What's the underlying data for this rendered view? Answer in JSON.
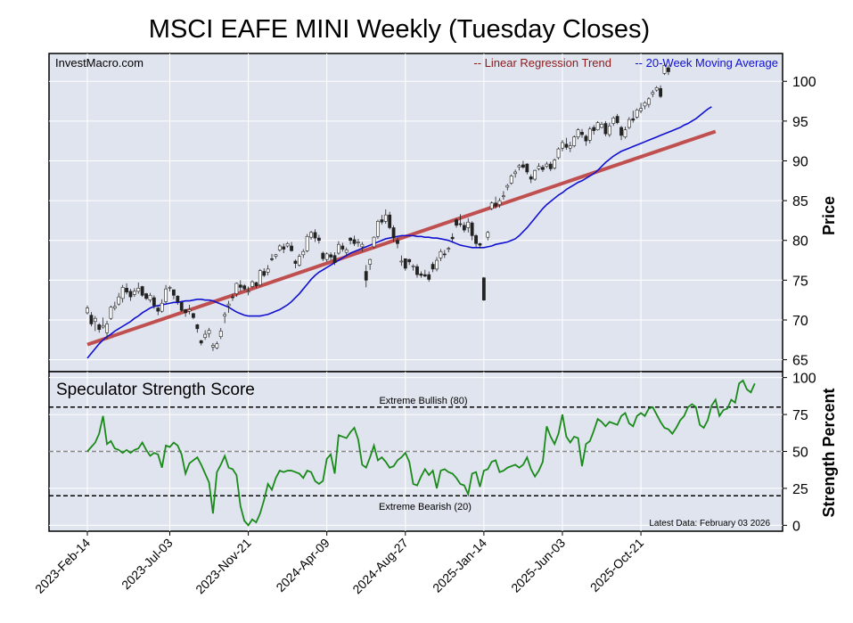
{
  "chart_data": [
    {
      "type": "candlestick",
      "title": "MSCI EAFE MINI Weekly (Tuesday Closes)",
      "watermark": "InvestMacro.com",
      "ylabel": "Price",
      "ylim": [
        63.5,
        103.5
      ],
      "yticks": [
        65,
        70,
        75,
        80,
        85,
        90,
        95,
        100
      ],
      "xlim": [
        0,
        168
      ],
      "grid": true,
      "legend": [
        {
          "label": "-- Linear Regression Trend",
          "color": "#8b1a1a"
        },
        {
          "label": "-- 20-Week Moving Average",
          "color": "#1010d0"
        }
      ],
      "legend_position": "top-right",
      "trend_line": {
        "start": [
          0,
          66.9
        ],
        "end": [
          160,
          93.7
        ],
        "color": "#c05050"
      },
      "candles": [
        [
          70.9,
          71.8,
          70.7,
          71.5
        ],
        [
          70.6,
          71.0,
          69.2,
          69.5
        ],
        [
          69.8,
          70.5,
          68.6,
          70.2
        ],
        [
          69.4,
          69.6,
          68.4,
          68.8
        ],
        [
          69.1,
          70.3,
          68.9,
          69.3
        ],
        [
          68.4,
          69.9,
          67.6,
          69.5
        ],
        [
          70.2,
          71.8,
          70.0,
          71.6
        ],
        [
          71.5,
          72.3,
          71.2,
          71.7
        ],
        [
          72.0,
          73.4,
          71.8,
          72.9
        ],
        [
          72.7,
          74.4,
          72.2,
          74.1
        ],
        [
          74.0,
          74.6,
          73.2,
          73.5
        ],
        [
          73.6,
          73.9,
          72.4,
          72.9
        ],
        [
          73.2,
          74.0,
          72.9,
          73.6
        ],
        [
          73.6,
          74.7,
          73.3,
          74.0
        ],
        [
          74.2,
          74.3,
          72.9,
          73.1
        ],
        [
          73.3,
          73.4,
          72.5,
          72.7
        ],
        [
          72.5,
          73.4,
          72.2,
          73.1
        ],
        [
          72.8,
          73.1,
          71.4,
          71.8
        ],
        [
          71.5,
          71.7,
          70.6,
          71.1
        ],
        [
          71.1,
          72.6,
          70.9,
          72.1
        ],
        [
          72.3,
          74.4,
          72.1,
          73.9
        ],
        [
          74.1,
          74.3,
          73.6,
          74.1
        ],
        [
          73.8,
          73.8,
          72.6,
          73.1
        ],
        [
          73.0,
          73.1,
          71.9,
          72.3
        ],
        [
          72.2,
          72.4,
          71.0,
          71.2
        ],
        [
          71.3,
          71.4,
          70.4,
          70.9
        ],
        [
          71.1,
          71.9,
          70.7,
          71.3
        ],
        [
          70.8,
          70.9,
          70.1,
          70.3
        ],
        [
          69.4,
          69.5,
          68.4,
          68.9
        ],
        [
          67.4,
          67.5,
          66.8,
          67.1
        ],
        [
          67.8,
          68.7,
          67.5,
          68.2
        ],
        [
          68.3,
          69.0,
          67.8,
          68.7
        ],
        [
          66.6,
          67.1,
          66.1,
          66.8
        ],
        [
          66.5,
          67.3,
          66.3,
          67.0
        ],
        [
          67.9,
          69.0,
          67.6,
          68.6
        ],
        [
          70.5,
          71.0,
          69.6,
          70.7
        ],
        [
          71.8,
          72.4,
          70.9,
          72.0
        ],
        [
          72.9,
          73.3,
          72.4,
          72.8
        ],
        [
          73.3,
          74.7,
          72.9,
          74.6
        ],
        [
          74.4,
          75.0,
          73.6,
          74.1
        ],
        [
          74.3,
          74.5,
          73.7,
          73.9
        ],
        [
          73.5,
          74.2,
          73.1,
          73.6
        ],
        [
          74.2,
          75.0,
          74.0,
          74.8
        ],
        [
          74.7,
          74.8,
          74.0,
          74.3
        ],
        [
          74.4,
          76.4,
          74.2,
          76.2
        ],
        [
          76.1,
          76.5,
          75.4,
          75.6
        ],
        [
          76.0,
          76.9,
          75.6,
          76.4
        ],
        [
          77.7,
          78.3,
          77.4,
          77.6
        ],
        [
          78.0,
          78.3,
          77.7,
          78.2
        ],
        [
          78.8,
          79.5,
          78.6,
          79.3
        ],
        [
          79.2,
          79.6,
          78.4,
          78.9
        ],
        [
          79.3,
          79.8,
          79.1,
          79.6
        ],
        [
          79.3,
          79.8,
          78.6,
          78.7
        ],
        [
          77.4,
          77.6,
          76.5,
          77.1
        ],
        [
          76.9,
          78.3,
          76.7,
          78.0
        ],
        [
          78.2,
          78.9,
          77.8,
          78.6
        ],
        [
          78.7,
          80.8,
          78.5,
          80.5
        ],
        [
          80.4,
          81.2,
          80.1,
          81.0
        ],
        [
          81.0,
          81.4,
          79.8,
          80.3
        ],
        [
          80.3,
          80.7,
          79.6,
          80.0
        ],
        [
          78.4,
          78.6,
          77.4,
          77.7
        ],
        [
          77.6,
          78.5,
          77.3,
          78.3
        ],
        [
          78.2,
          78.5,
          77.5,
          77.9
        ],
        [
          78.1,
          78.5,
          76.9,
          77.2
        ],
        [
          78.4,
          79.9,
          78.2,
          79.5
        ],
        [
          79.3,
          79.7,
          78.6,
          78.9
        ],
        [
          78.5,
          79.1,
          78.1,
          78.8
        ],
        [
          80.3,
          80.4,
          79.5,
          80.0
        ],
        [
          80.1,
          80.6,
          79.3,
          79.6
        ],
        [
          79.7,
          80.2,
          79.2,
          79.8
        ],
        [
          79.2,
          79.8,
          78.6,
          79.5
        ],
        [
          76.1,
          76.9,
          74.1,
          75.0
        ],
        [
          77.0,
          77.7,
          76.3,
          77.6
        ],
        [
          79.2,
          80.5,
          79.0,
          80.4
        ],
        [
          80.5,
          82.6,
          80.2,
          82.4
        ],
        [
          82.6,
          83.2,
          82.0,
          82.3
        ],
        [
          82.4,
          83.9,
          82.1,
          83.2
        ],
        [
          83.2,
          83.6,
          81.4,
          81.6
        ],
        [
          81.6,
          81.9,
          79.8,
          80.3
        ],
        [
          80.0,
          80.4,
          79.0,
          79.6
        ],
        [
          77.4,
          78.1,
          76.8,
          77.4
        ],
        [
          77.7,
          77.6,
          76.2,
          76.5
        ],
        [
          77.6,
          77.7,
          76.9,
          77.3
        ],
        [
          76.7,
          77.0,
          76.2,
          76.8
        ],
        [
          76.7,
          77.0,
          75.3,
          75.7
        ],
        [
          75.8,
          76.1,
          75.3,
          75.6
        ],
        [
          75.7,
          76.3,
          75.4,
          75.5
        ],
        [
          75.7,
          76.1,
          74.8,
          75.1
        ],
        [
          77.0,
          77.3,
          76.0,
          76.4
        ],
        [
          76.4,
          77.9,
          76.1,
          77.5
        ],
        [
          77.8,
          78.9,
          77.4,
          78.6
        ],
        [
          78.3,
          78.8,
          77.8,
          78.2
        ],
        [
          78.9,
          79.2,
          78.5,
          79.0
        ],
        [
          80.4,
          80.9,
          79.7,
          80.2
        ],
        [
          82.6,
          82.8,
          81.6,
          81.9
        ],
        [
          82.1,
          83.3,
          81.7,
          82.0
        ],
        [
          81.9,
          82.3,
          81.0,
          81.3
        ],
        [
          81.6,
          82.8,
          81.0,
          82.3
        ],
        [
          82.2,
          82.4,
          80.0,
          80.6
        ],
        [
          80.6,
          80.8,
          79.2,
          79.6
        ],
        [
          79.6,
          79.7,
          79.0,
          79.4
        ],
        [
          75.3,
          75.4,
          72.4,
          72.5
        ],
        [
          80.4,
          81.2,
          80.0,
          81.0
        ],
        [
          84.0,
          84.9,
          83.8,
          84.7
        ],
        [
          84.7,
          85.5,
          84.0,
          84.3
        ],
        [
          84.5,
          85.3,
          84.1,
          85.0
        ],
        [
          85.5,
          86.2,
          85.1,
          85.6
        ],
        [
          86.7,
          87.1,
          86.3,
          86.9
        ],
        [
          87.2,
          88.3,
          87.0,
          88.1
        ],
        [
          88.4,
          88.9,
          87.9,
          88.6
        ],
        [
          89.2,
          89.6,
          88.8,
          89.4
        ],
        [
          89.5,
          90.0,
          89.0,
          89.2
        ],
        [
          89.6,
          89.7,
          88.3,
          88.6
        ],
        [
          88.0,
          88.3,
          87.2,
          87.7
        ],
        [
          87.7,
          88.9,
          87.5,
          88.8
        ],
        [
          89.0,
          89.7,
          88.8,
          89.3
        ],
        [
          89.2,
          89.5,
          88.6,
          88.9
        ],
        [
          89.3,
          89.9,
          89.1,
          89.6
        ],
        [
          89.6,
          89.9,
          88.7,
          89.0
        ],
        [
          89.1,
          90.3,
          88.9,
          90.1
        ],
        [
          90.4,
          91.7,
          90.2,
          91.5
        ],
        [
          91.6,
          92.6,
          91.2,
          92.3
        ],
        [
          92.1,
          92.9,
          91.4,
          91.7
        ],
        [
          91.6,
          92.4,
          91.1,
          91.9
        ],
        [
          91.9,
          93.2,
          91.7,
          93.0
        ],
        [
          93.0,
          94.1,
          92.7,
          93.9
        ],
        [
          93.6,
          94.0,
          92.9,
          93.3
        ],
        [
          93.1,
          93.3,
          91.9,
          92.5
        ],
        [
          92.6,
          94.3,
          92.2,
          94.0
        ],
        [
          94.2,
          94.5,
          93.3,
          93.8
        ],
        [
          93.9,
          95.0,
          93.8,
          94.8
        ],
        [
          94.2,
          94.9,
          94.1,
          94.6
        ],
        [
          94.7,
          95.0,
          93.1,
          93.4
        ],
        [
          93.3,
          94.8,
          93.0,
          94.4
        ],
        [
          94.7,
          95.6,
          94.4,
          95.4
        ],
        [
          95.6,
          95.9,
          94.6,
          94.8
        ],
        [
          94.2,
          94.4,
          92.6,
          93.2
        ],
        [
          93.0,
          94.3,
          92.8,
          93.9
        ],
        [
          94.2,
          95.5,
          94.0,
          95.2
        ],
        [
          95.3,
          96.3,
          94.8,
          95.1
        ],
        [
          95.5,
          96.6,
          95.3,
          96.4
        ],
        [
          96.3,
          97.3,
          96.0,
          96.6
        ],
        [
          96.9,
          97.5,
          96.5,
          97.3
        ],
        [
          97.1,
          98.0,
          96.7,
          97.8
        ],
        [
          98.4,
          98.9,
          98.0,
          98.6
        ],
        [
          98.9,
          99.4,
          98.7,
          99.2
        ],
        [
          99.1,
          99.5,
          97.9,
          98.1
        ],
        [
          101.0,
          102.3,
          100.8,
          102.0
        ],
        [
          101.7,
          102.0,
          100.8,
          101.2
        ]
      ],
      "moving_average": [
        65.2,
        65.8,
        66.4,
        67.0,
        67.5,
        67.9,
        68.2,
        68.6,
        68.9,
        69.2,
        69.5,
        69.8,
        70.2,
        70.5,
        70.9,
        71.2,
        71.5,
        71.7,
        71.8,
        71.9,
        72.0,
        72.1,
        72.2,
        72.2,
        72.3,
        72.4,
        72.4,
        72.5,
        72.6,
        72.6,
        72.5,
        72.5,
        72.4,
        72.2,
        72.0,
        71.8,
        71.6,
        71.3,
        71.0,
        70.8,
        70.6,
        70.5,
        70.5,
        70.5,
        70.5,
        70.6,
        70.7,
        70.9,
        71.1,
        71.3,
        71.6,
        71.9,
        72.3,
        72.8,
        73.3,
        73.9,
        74.5,
        75.1,
        75.6,
        76.0,
        76.3,
        76.6,
        76.9,
        77.2,
        77.5,
        77.8,
        78.1,
        78.4,
        78.6,
        78.8,
        79.0,
        79.2,
        79.4,
        79.6,
        79.8,
        80.0,
        80.2,
        80.3,
        80.4,
        80.5,
        80.6,
        80.6,
        80.6,
        80.6,
        80.5,
        80.5,
        80.4,
        80.4,
        80.3,
        80.3,
        80.2,
        80.1,
        80.0,
        79.8,
        79.6,
        79.4,
        79.3,
        79.2,
        79.1,
        79.1,
        79.1,
        79.1,
        79.2,
        79.3,
        79.5,
        79.6,
        79.7,
        79.8,
        80.0,
        80.2,
        80.6,
        81.1,
        81.6,
        82.2,
        82.8,
        83.4,
        84.0,
        84.5,
        84.9,
        85.3,
        85.7,
        86.0,
        86.4,
        86.7,
        87.0,
        87.3,
        87.5,
        87.8,
        88.1,
        88.4,
        88.8,
        89.3,
        89.8,
        90.2,
        90.6,
        90.9,
        91.2,
        91.4,
        91.6,
        91.8,
        92.0,
        92.2,
        92.4,
        92.6,
        92.8,
        93.0,
        93.2,
        93.4,
        93.6,
        93.8,
        94.0,
        94.2,
        94.5,
        94.7,
        95.0,
        95.3,
        95.7,
        96.1,
        96.5,
        96.8
      ]
    },
    {
      "type": "line",
      "title": "Speculator Strength Score",
      "ylabel": "Strength Percent",
      "ylim": [
        -4,
        104
      ],
      "yticks": [
        0,
        25,
        50,
        75,
        100
      ],
      "xlim": [
        0,
        168
      ],
      "grid": true,
      "series": [
        {
          "color": "#1a8a1a",
          "values": [
            50,
            53,
            56,
            62,
            74,
            55,
            57,
            52,
            51,
            49,
            51,
            49,
            51,
            52,
            56,
            51,
            47,
            49,
            48,
            39,
            54,
            53,
            56,
            54,
            48,
            35,
            42,
            44,
            46,
            41,
            35,
            29,
            8,
            36,
            41,
            47,
            39,
            38,
            34,
            13,
            3,
            0,
            4,
            2,
            8,
            17,
            28,
            24,
            32,
            37,
            36,
            37,
            37,
            36,
            35,
            32,
            37,
            36,
            30,
            28,
            30,
            45,
            48,
            35,
            61,
            60,
            59,
            63,
            66,
            58,
            41,
            39,
            46,
            54,
            44,
            46,
            43,
            39,
            40,
            44,
            46,
            49,
            43,
            28,
            27,
            33,
            38,
            34,
            37,
            25,
            37,
            38,
            36,
            35,
            32,
            28,
            27,
            21,
            35,
            36,
            26,
            37,
            38,
            43,
            44,
            36,
            37,
            39,
            40,
            41,
            39,
            41,
            46,
            38,
            33,
            37,
            43,
            67,
            60,
            55,
            62,
            75,
            60,
            56,
            60,
            59,
            40,
            55,
            57,
            64,
            72,
            70,
            67,
            70,
            69,
            68,
            74,
            76,
            69,
            67,
            74,
            76,
            74,
            79,
            80,
            75,
            70,
            66,
            65,
            62,
            66,
            71,
            74,
            80,
            82,
            80,
            68,
            66,
            71,
            81,
            85,
            74,
            78,
            79,
            85,
            83,
            96,
            98,
            92,
            90,
            96
          ]
        }
      ],
      "reference_lines": [
        {
          "value": 80,
          "label": "Extreme Bullish (80)",
          "style": "dashed"
        },
        {
          "value": 50,
          "label": "",
          "style": "dashed-gray"
        },
        {
          "value": 20,
          "label": "Extreme Bearish (20)",
          "style": "dashed"
        }
      ],
      "annotation": "Latest Data: February 03 2026",
      "xtick_labels": [
        "2023-Feb-14",
        "2023-Jul-03",
        "2023-Nov-21",
        "2024-Apr-09",
        "2024-Aug-27",
        "2025-Jan-14",
        "2025-Jun-03",
        "2025-Oct-21"
      ],
      "xtick_positions": [
        0,
        21,
        41,
        61,
        81,
        101,
        121,
        141
      ]
    }
  ]
}
